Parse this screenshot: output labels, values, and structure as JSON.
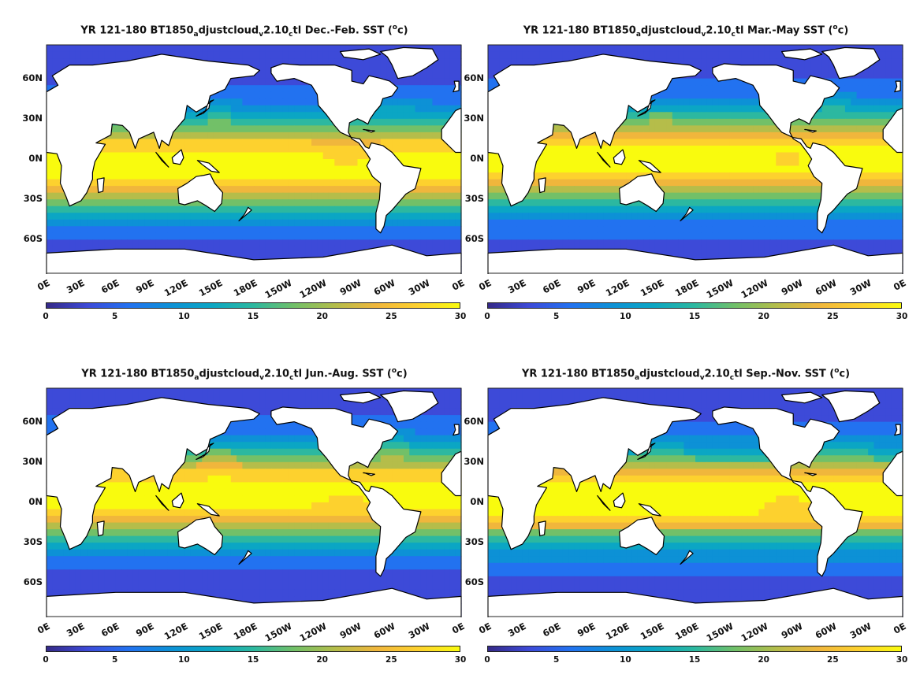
{
  "chart_data": [
    {
      "type": "heatmap",
      "title": {
        "a": "YR 121-180 BT1850",
        "b": "a",
        "c": "djustcloud",
        "d": "v",
        "e": "2.10",
        "f": "c",
        "g": "tl Dec.-Feb. SST (",
        "h": "o",
        "i": "c)"
      },
      "x_ticks": [
        "0E",
        "30E",
        "60E",
        "90E",
        "120E",
        "150E",
        "180E",
        "150W",
        "120W",
        "90W",
        "60W",
        "30W",
        "0E"
      ],
      "y_ticks": [
        "60N",
        "30N",
        "0N",
        "30S",
        "60S"
      ],
      "colorbar": {
        "ticks": [
          "0",
          "5",
          "10",
          "15",
          "20",
          "25",
          "30"
        ],
        "min": 0,
        "max": 30,
        "colormap": "parula"
      },
      "season": "DJF"
    },
    {
      "type": "heatmap",
      "title": {
        "a": "YR 121-180 BT1850",
        "b": "a",
        "c": "djustcloud",
        "d": "v",
        "e": "2.10",
        "f": "c",
        "g": "tl Mar.-May SST (",
        "h": "o",
        "i": "c)"
      },
      "x_ticks": [
        "0E",
        "30E",
        "60E",
        "90E",
        "120E",
        "150E",
        "180E",
        "150W",
        "120W",
        "90W",
        "60W",
        "30W",
        "0E"
      ],
      "y_ticks": [
        "60N",
        "30N",
        "0N",
        "30S",
        "60S"
      ],
      "colorbar": {
        "ticks": [
          "0",
          "5",
          "10",
          "15",
          "20",
          "25",
          "30"
        ],
        "min": 0,
        "max": 30,
        "colormap": "parula"
      },
      "season": "MAM"
    },
    {
      "type": "heatmap",
      "title": {
        "a": "YR 121-180 BT1850",
        "b": "a",
        "c": "djustcloud",
        "d": "v",
        "e": "2.10",
        "f": "c",
        "g": "tl Jun.-Aug. SST (",
        "h": "o",
        "i": "c)"
      },
      "x_ticks": [
        "0E",
        "30E",
        "60E",
        "90E",
        "120E",
        "150E",
        "180E",
        "150W",
        "120W",
        "90W",
        "60W",
        "30W",
        "0E"
      ],
      "y_ticks": [
        "60N",
        "30N",
        "0N",
        "30S",
        "60S"
      ],
      "colorbar": {
        "ticks": [
          "0",
          "5",
          "10",
          "15",
          "20",
          "25",
          "30"
        ],
        "min": 0,
        "max": 30,
        "colormap": "parula"
      },
      "season": "JJA"
    },
    {
      "type": "heatmap",
      "title": {
        "a": "YR 121-180 BT1850",
        "b": "a",
        "c": "djustcloud",
        "d": "v",
        "e": "2.10",
        "f": "c",
        "g": "tl Sep.-Nov. SST (",
        "h": "o",
        "i": "c)"
      },
      "x_ticks": [
        "0E",
        "30E",
        "60E",
        "90E",
        "120E",
        "150E",
        "180E",
        "150W",
        "120W",
        "90W",
        "60W",
        "30W",
        "0E"
      ],
      "y_ticks": [
        "60N",
        "30N",
        "0N",
        "30S",
        "60S"
      ],
      "colorbar": {
        "ticks": [
          "0",
          "5",
          "10",
          "15",
          "20",
          "25",
          "30"
        ],
        "min": 0,
        "max": 30,
        "colormap": "parula"
      },
      "season": "SON"
    }
  ],
  "colors": {
    "cold": "#3e26a8",
    "cool": "#2e87f7",
    "mid": "#17b5c0",
    "mild": "#7ec73f",
    "warm": "#fbb935",
    "hot": "#f9fb15",
    "land": "#ffffff",
    "coast": "#000000"
  }
}
